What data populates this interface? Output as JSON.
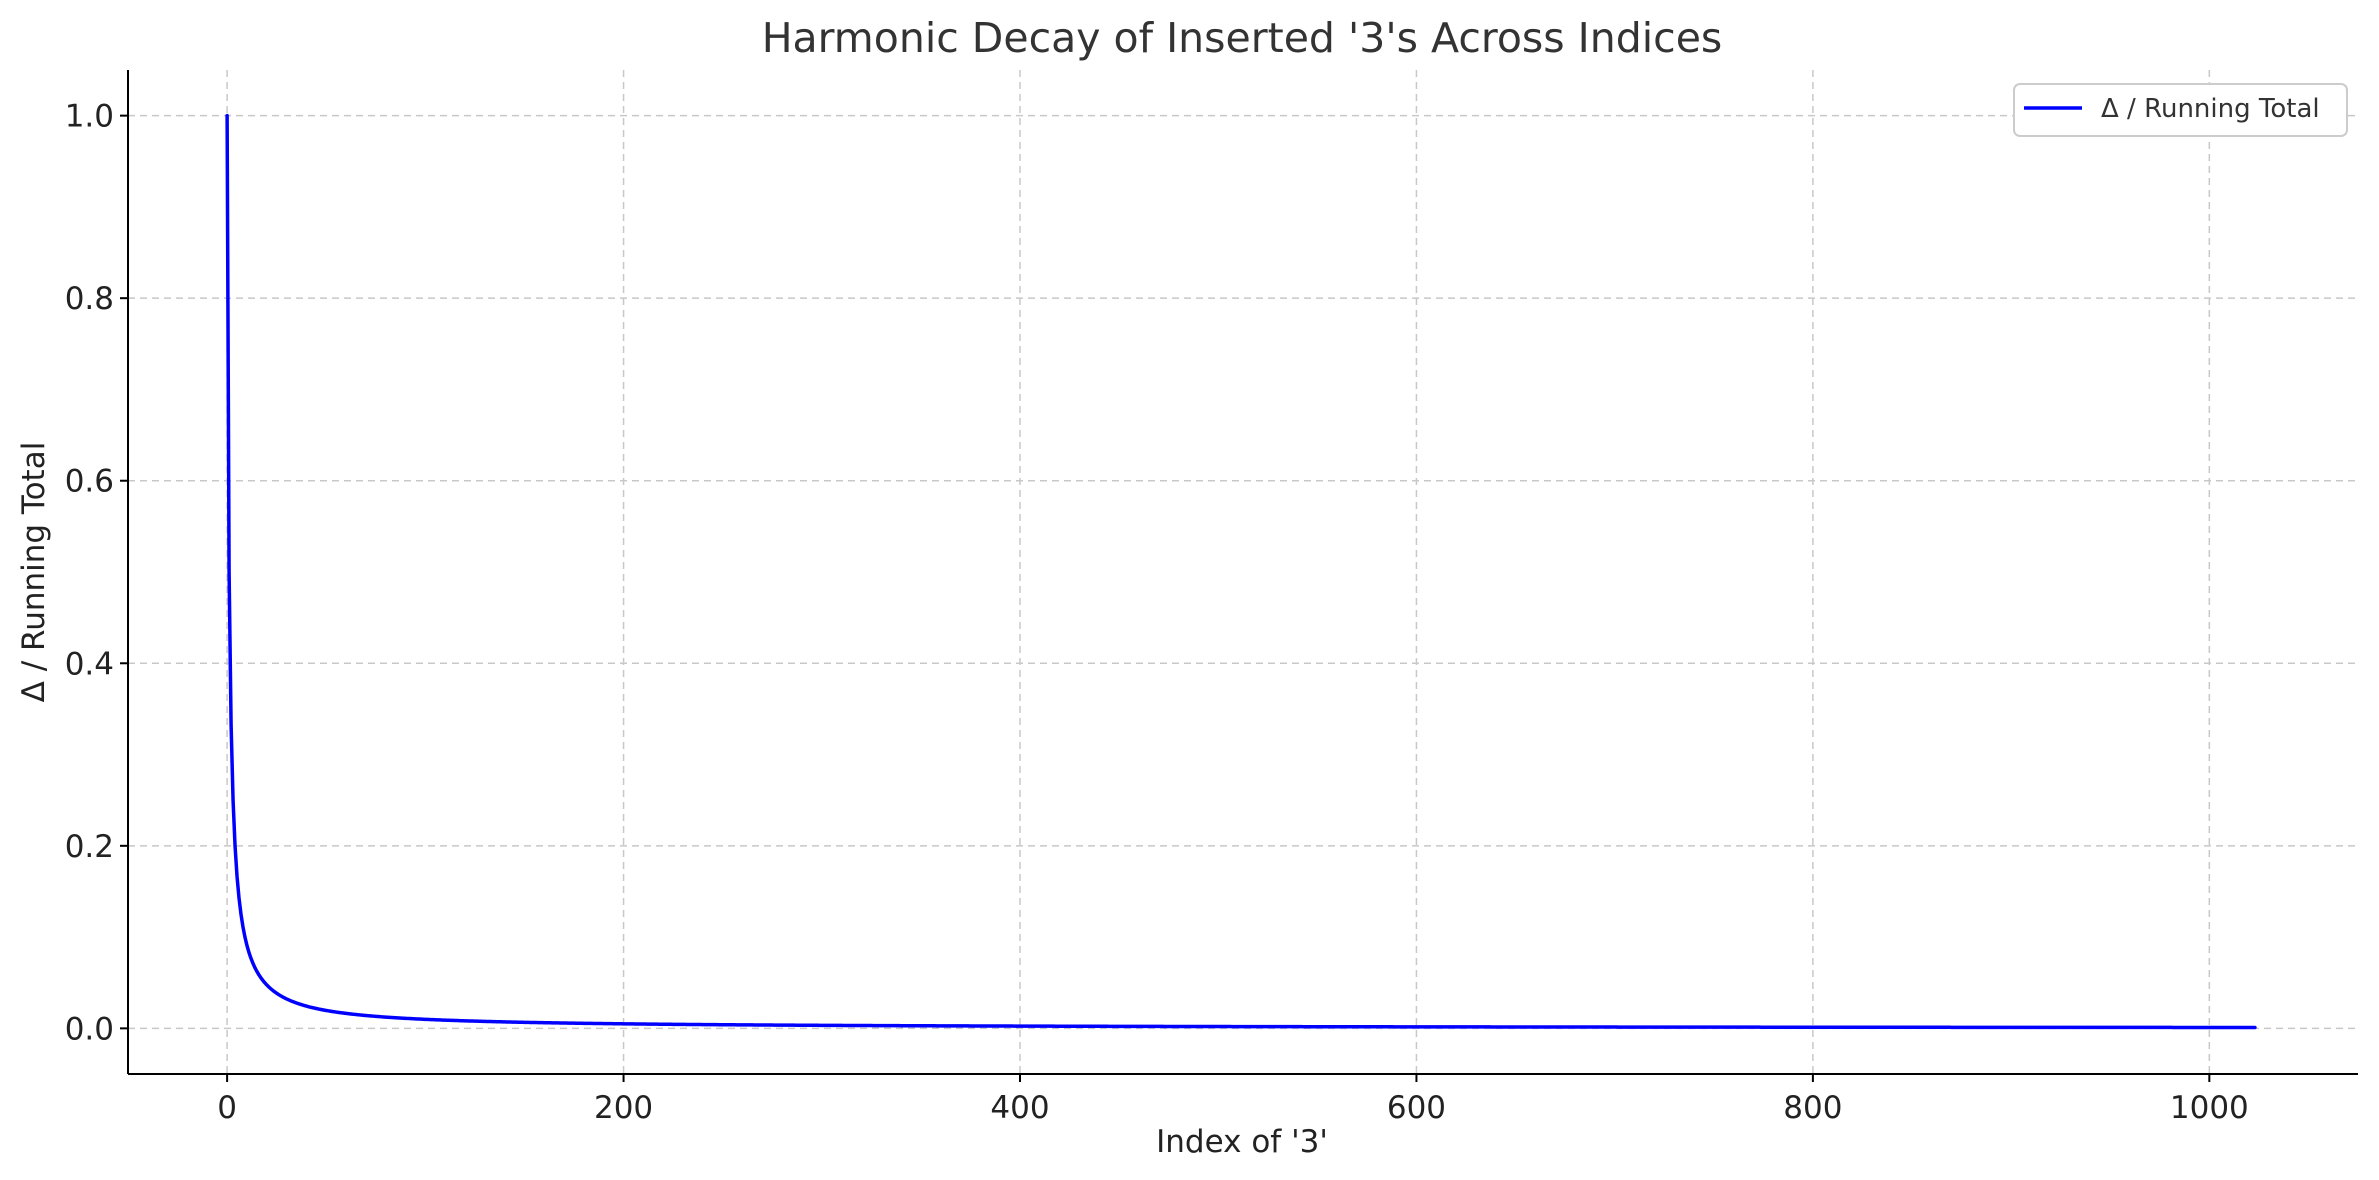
{
  "chart_data": {
    "type": "line",
    "title": "Harmonic Decay of Inserted '3's Across Indices",
    "xlabel": "Index of '3'",
    "ylabel": "Δ / Running Total",
    "xlim": [
      -50,
      1075
    ],
    "ylim": [
      -0.05,
      1.05
    ],
    "x_ticks": [
      0,
      200,
      400,
      600,
      800,
      1000
    ],
    "x_tick_labels": [
      "0",
      "200",
      "400",
      "600",
      "800",
      "1000"
    ],
    "y_ticks": [
      0.0,
      0.2,
      0.4,
      0.6,
      0.8,
      1.0
    ],
    "y_tick_labels": [
      "0.0",
      "0.2",
      "0.4",
      "0.6",
      "0.8",
      "1.0"
    ],
    "grid": true,
    "legend_position": "top-right",
    "series": [
      {
        "name": "Δ / Running Total",
        "color": "#0000ff",
        "x_range": [
          0,
          1023
        ],
        "formula": "1 / (x + 1)"
      }
    ]
  },
  "colors": {
    "line": "#0000ff",
    "grid": "#c8c8c8",
    "axis": "#000000",
    "title": "#333333"
  }
}
